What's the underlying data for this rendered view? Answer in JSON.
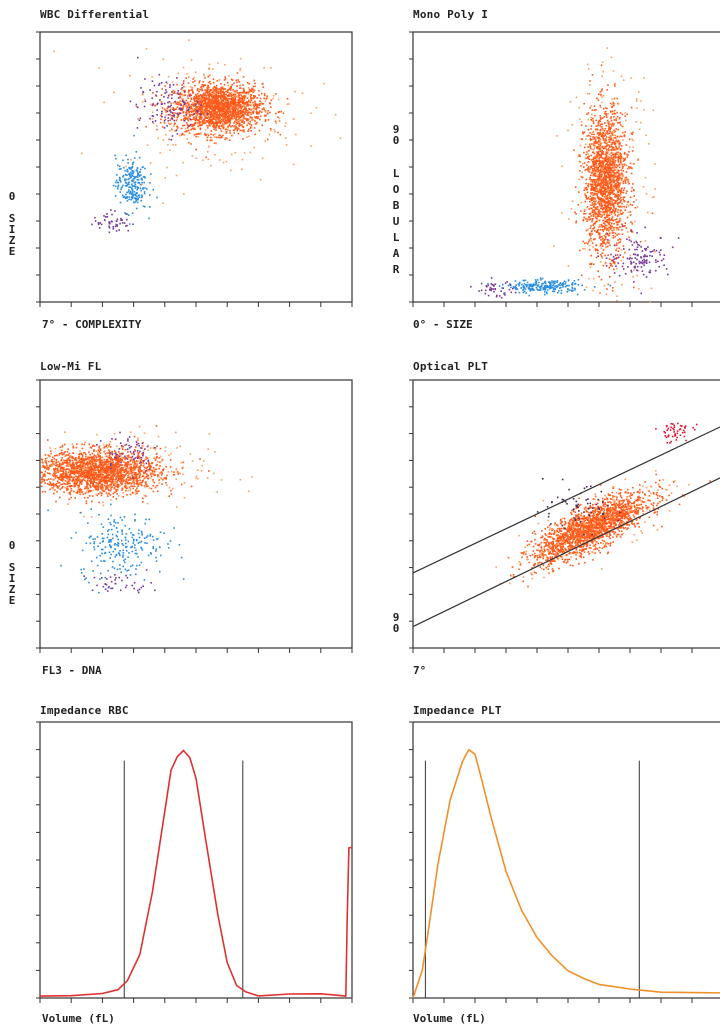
{
  "chart_data": [
    {
      "id": "wbc",
      "type": "scatter",
      "title": "WBC Differential",
      "xlabel": "7° - COMPLEXITY",
      "ylabel_chars": [
        "0",
        "",
        "S",
        "I",
        "Z",
        "E"
      ],
      "xlim": [
        0,
        1
      ],
      "ylim": [
        0,
        1
      ],
      "grid": false,
      "clusters": [
        {
          "color": "#ff5a1a",
          "cx": 0.57,
          "cy": 0.72,
          "sx": 0.07,
          "sy": 0.045,
          "n": 1800
        },
        {
          "color": "#ffa060",
          "cx": 0.55,
          "cy": 0.7,
          "sx": 0.15,
          "sy": 0.11,
          "n": 220
        },
        {
          "color": "#7a3a9a",
          "cx": 0.41,
          "cy": 0.73,
          "sx": 0.05,
          "sy": 0.05,
          "n": 120
        },
        {
          "color": "#2a8ee0",
          "cx": 0.29,
          "cy": 0.44,
          "sx": 0.025,
          "sy": 0.05,
          "n": 230
        },
        {
          "color": "#7a3a9a",
          "cx": 0.23,
          "cy": 0.3,
          "sx": 0.03,
          "sy": 0.02,
          "n": 50
        }
      ]
    },
    {
      "id": "mono",
      "type": "scatter",
      "title": "Mono Poly I",
      "xlabel": "0° - SIZE",
      "ylabel_chars": [
        "9",
        "0",
        "",
        "L",
        "O",
        "B",
        "U",
        "L",
        "A",
        "R"
      ],
      "xlim": [
        0,
        1
      ],
      "ylim": [
        0,
        1
      ],
      "grid": false,
      "clusters": [
        {
          "color": "#ff5a1a",
          "cx": 0.62,
          "cy": 0.45,
          "sx": 0.035,
          "sy": 0.13,
          "n": 1700
        },
        {
          "color": "#ffa060",
          "cx": 0.63,
          "cy": 0.45,
          "sx": 0.07,
          "sy": 0.22,
          "n": 260
        },
        {
          "color": "#7a3a9a",
          "cx": 0.73,
          "cy": 0.17,
          "sx": 0.05,
          "sy": 0.04,
          "n": 130
        },
        {
          "color": "#2a8ee0",
          "cx": 0.42,
          "cy": 0.06,
          "sx": 0.06,
          "sy": 0.012,
          "n": 220
        },
        {
          "color": "#7a3a9a",
          "cx": 0.26,
          "cy": 0.05,
          "sx": 0.03,
          "sy": 0.015,
          "n": 40
        }
      ]
    },
    {
      "id": "lowmi",
      "type": "scatter",
      "title": "Low-Mi FL",
      "xlabel": "FL3 - DNA",
      "ylabel_chars": [
        "0",
        "",
        "S",
        "I",
        "Z",
        "E"
      ],
      "xlim": [
        0,
        1
      ],
      "ylim": [
        0,
        1
      ],
      "grid": false,
      "clusters": [
        {
          "color": "#ff5a1a",
          "cx": 0.18,
          "cy": 0.66,
          "sx": 0.1,
          "sy": 0.04,
          "n": 1900
        },
        {
          "color": "#ffa060",
          "cx": 0.22,
          "cy": 0.66,
          "sx": 0.16,
          "sy": 0.07,
          "n": 260
        },
        {
          "color": "#7a3a9a",
          "cx": 0.28,
          "cy": 0.74,
          "sx": 0.05,
          "sy": 0.04,
          "n": 60
        },
        {
          "color": "#2a8ee0",
          "cx": 0.26,
          "cy": 0.39,
          "sx": 0.07,
          "sy": 0.06,
          "n": 230
        },
        {
          "color": "#7a3a9a",
          "cx": 0.26,
          "cy": 0.24,
          "sx": 0.05,
          "sy": 0.02,
          "n": 40
        }
      ]
    },
    {
      "id": "oplt",
      "type": "scatter",
      "title": "Optical PLT",
      "xlabel": "7°",
      "ylabel_chars": [
        "9",
        "0"
      ],
      "xlim": [
        0,
        1
      ],
      "ylim": [
        0,
        1
      ],
      "grid": false,
      "gate_lines": [
        {
          "x1": 0.0,
          "y1": 0.28,
          "x2": 1.0,
          "y2": 0.83
        },
        {
          "x1": 0.0,
          "y1": 0.08,
          "x2": 1.0,
          "y2": 0.64
        }
      ],
      "clusters": [
        {
          "color": "#ff5a1a",
          "cx": 0.57,
          "cy": 0.45,
          "sx": 0.09,
          "sy": 0.04,
          "n": 1800,
          "slope": 0.55
        },
        {
          "color": "#ffa060",
          "cx": 0.58,
          "cy": 0.46,
          "sx": 0.13,
          "sy": 0.06,
          "n": 200,
          "slope": 0.55
        },
        {
          "color": "#e01030",
          "cx": 0.84,
          "cy": 0.81,
          "sx": 0.03,
          "sy": 0.02,
          "n": 50
        },
        {
          "color": "#4a2a5a",
          "cx": 0.52,
          "cy": 0.52,
          "sx": 0.07,
          "sy": 0.04,
          "n": 60
        }
      ]
    },
    {
      "id": "rbc",
      "type": "line",
      "title": "Impedance RBC",
      "xlabel": "Volume (fL)",
      "line_color": "#e03030",
      "xlim": [
        0,
        1
      ],
      "ylim": [
        0,
        1
      ],
      "grid": false,
      "gates": [
        0.27,
        0.65
      ],
      "x": [
        0,
        0.1,
        0.2,
        0.25,
        0.28,
        0.32,
        0.36,
        0.4,
        0.42,
        0.44,
        0.46,
        0.48,
        0.5,
        0.53,
        0.57,
        0.6,
        0.63,
        0.66,
        0.7,
        0.8,
        0.9,
        0.96,
        0.98,
        0.985,
        0.99,
        1.0
      ],
      "y": [
        0.01,
        0.01,
        0.02,
        0.03,
        0.06,
        0.16,
        0.38,
        0.68,
        0.82,
        0.88,
        0.9,
        0.87,
        0.8,
        0.58,
        0.3,
        0.13,
        0.05,
        0.02,
        0.01,
        0.01,
        0.01,
        0.01,
        0.01,
        0.3,
        0.55,
        0.55
      ]
    },
    {
      "id": "iplt",
      "type": "line",
      "title": "Impedance PLT",
      "xlabel": "Volume (fL)",
      "line_color": "#f0902a",
      "xlim": [
        0,
        1
      ],
      "ylim": [
        0,
        1
      ],
      "grid": false,
      "gates": [
        0.04,
        0.73
      ],
      "x": [
        0,
        0.03,
        0.05,
        0.08,
        0.12,
        0.16,
        0.18,
        0.2,
        0.22,
        0.25,
        0.3,
        0.35,
        0.4,
        0.45,
        0.5,
        0.55,
        0.6,
        0.7,
        0.8,
        0.9,
        1.0
      ],
      "y": [
        0.0,
        0.1,
        0.25,
        0.48,
        0.72,
        0.86,
        0.9,
        0.88,
        0.8,
        0.66,
        0.46,
        0.32,
        0.22,
        0.15,
        0.1,
        0.07,
        0.05,
        0.03,
        0.02,
        0.02,
        0.02
      ]
    }
  ]
}
